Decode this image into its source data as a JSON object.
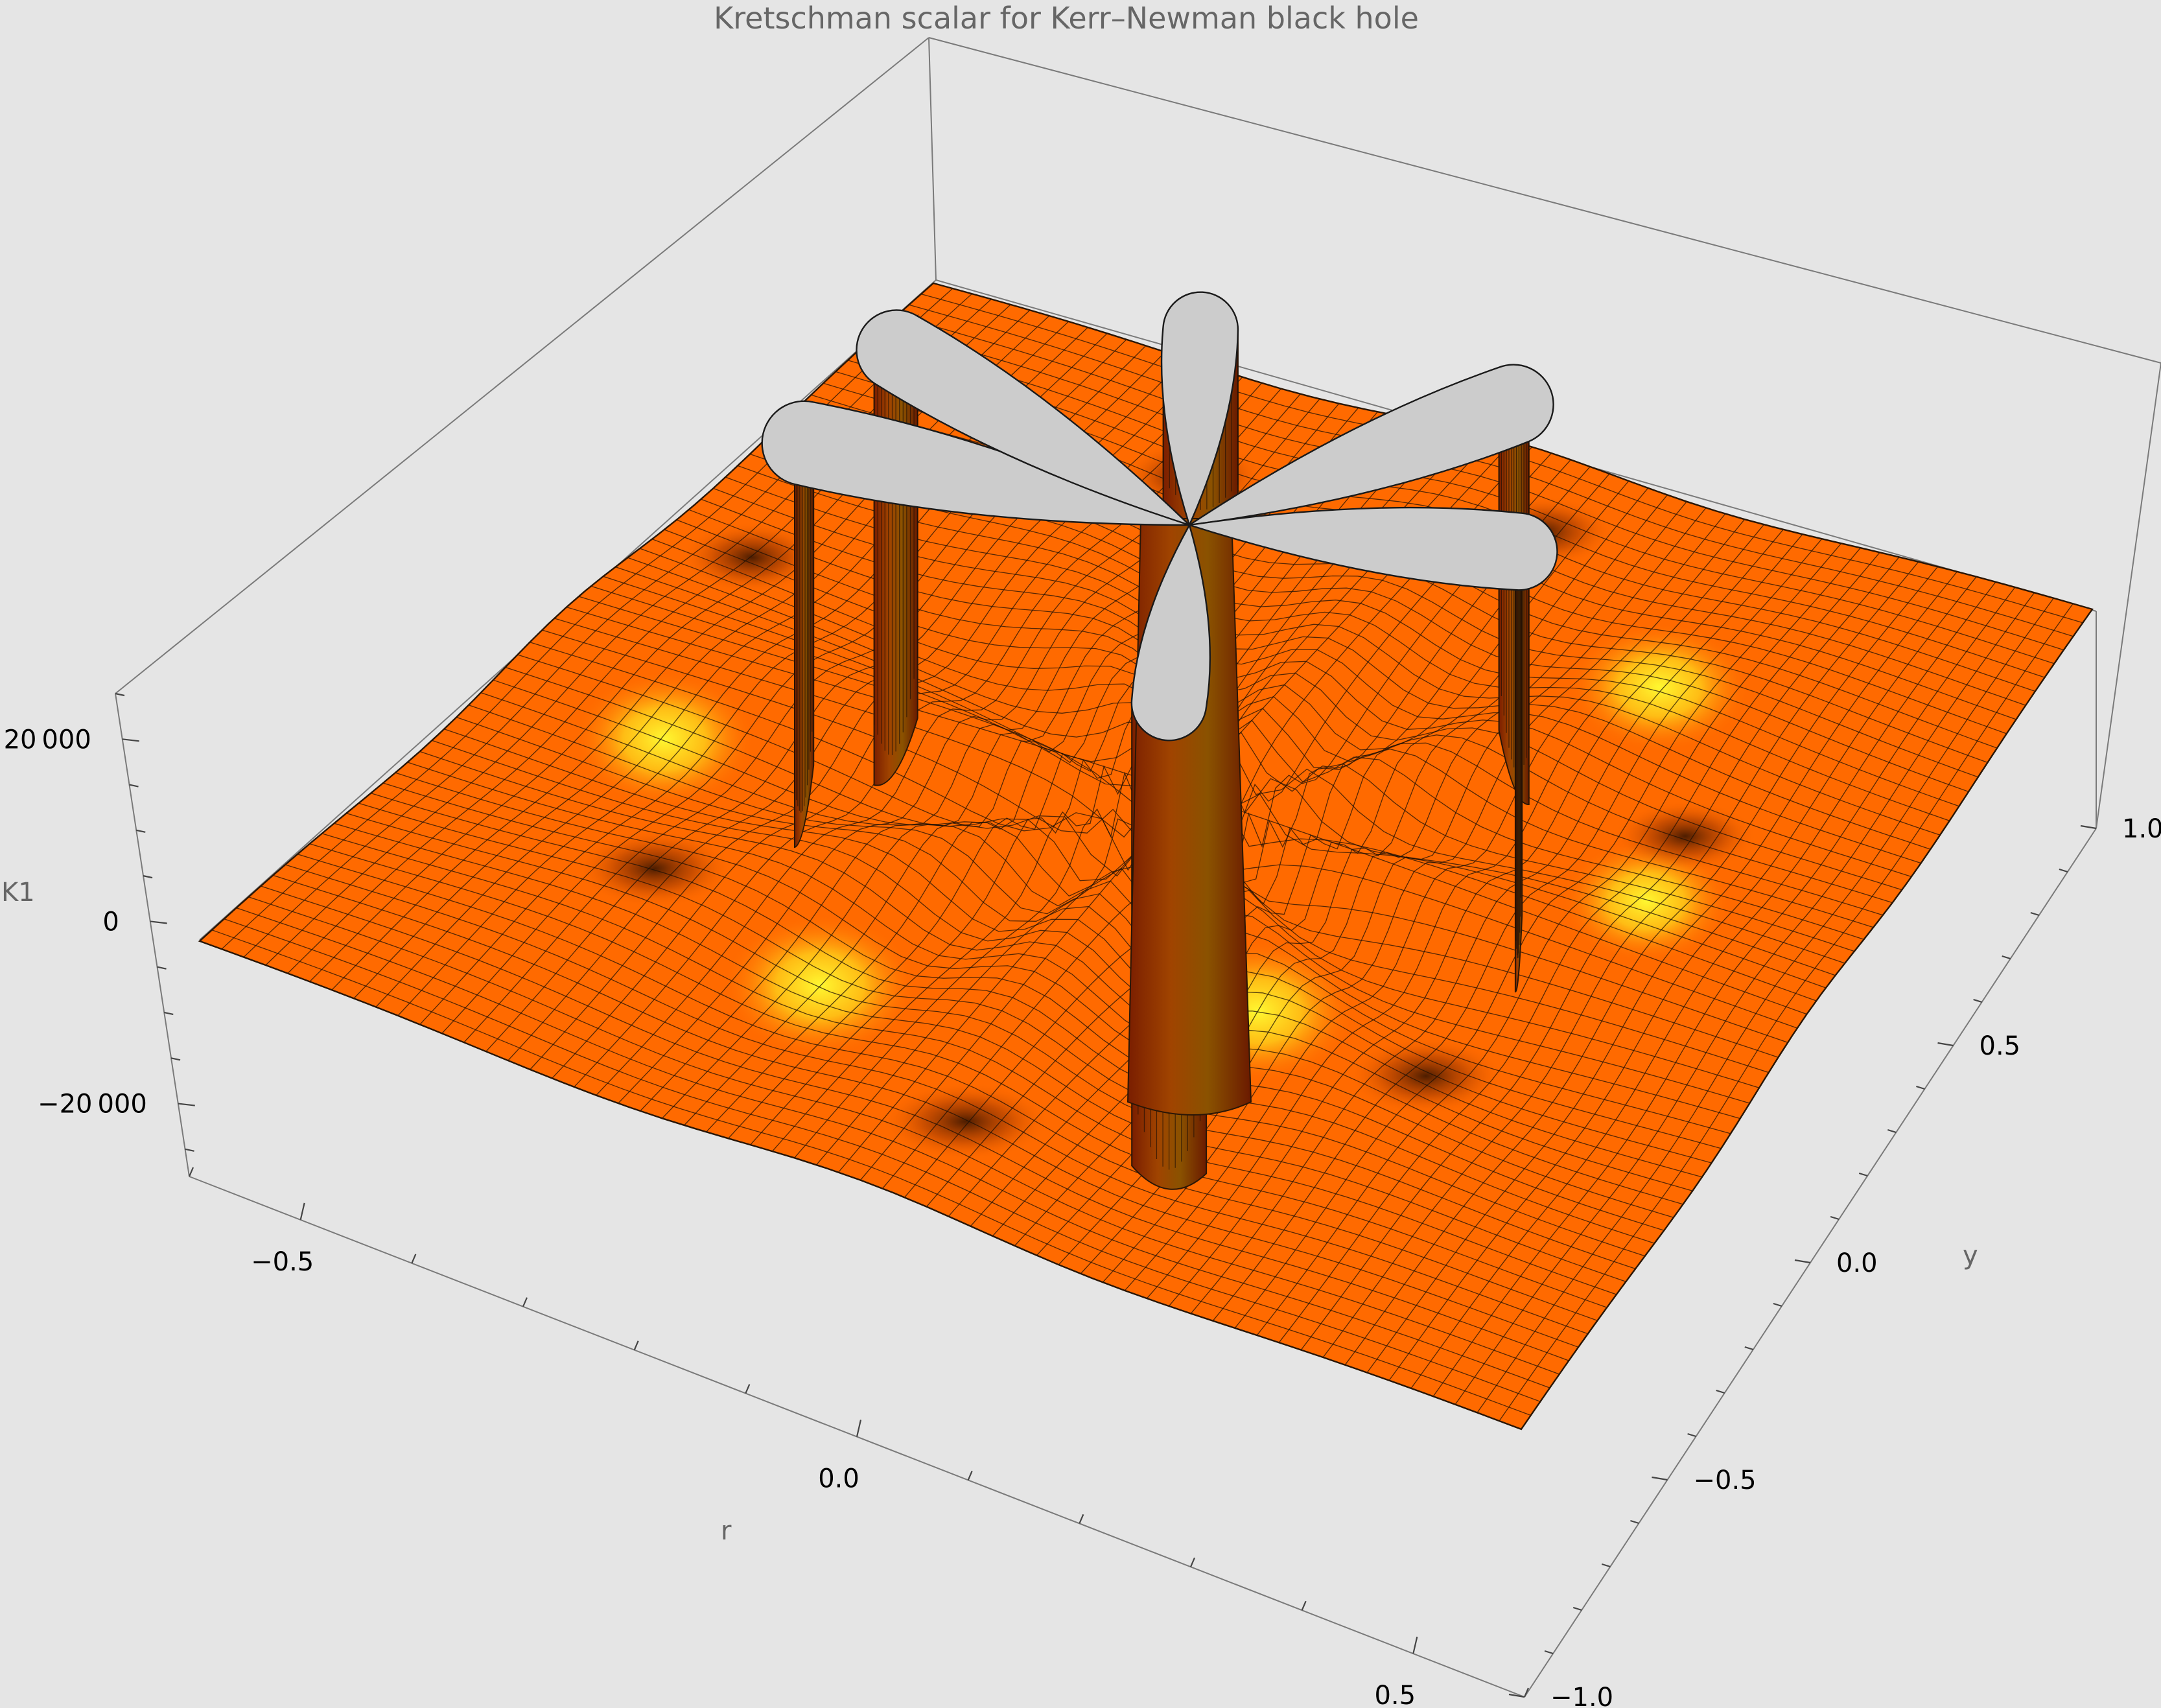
{
  "chart_data": {
    "type": "surface3d",
    "title": "Kretschman scalar for Kerr–Newman black hole",
    "xlabel": "r",
    "ylabel": "y",
    "zlabel": "K1",
    "x_ticks": [
      "−0.5",
      "0.0",
      "0.5"
    ],
    "y_ticks": [
      "−1.0",
      "−0.5",
      "0.0",
      "0.5",
      "1.0"
    ],
    "z_ticks": [
      "−20 000",
      "0",
      "20 000"
    ],
    "x_range": [
      -0.6,
      0.6
    ],
    "y_range": [
      -1.0,
      1.0
    ],
    "z_range": [
      -28000,
      25000
    ],
    "surface": {
      "shape": "four-lobed spike clipped at the top of the plot range",
      "clip_color": "#cccccc",
      "colormap": [
        "#7a1e00",
        "#b83b00",
        "#ff6a00",
        "#ff8c1a",
        "#ffd21a",
        "#ffff33",
        "#ffe9c2"
      ],
      "mesh_color": "#1e1006"
    }
  }
}
